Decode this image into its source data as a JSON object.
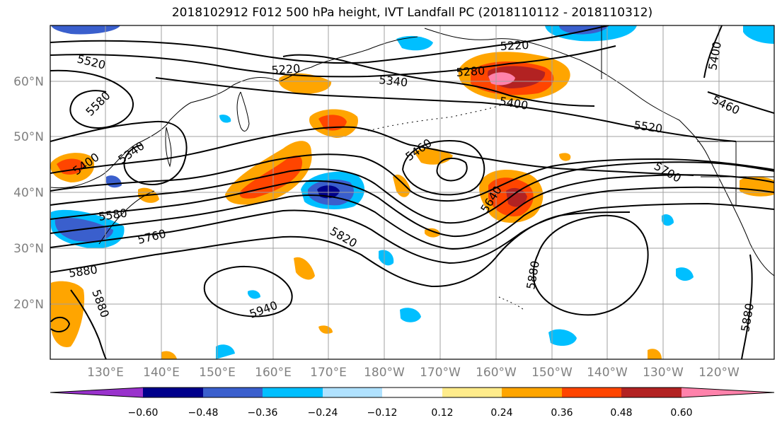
{
  "title": "2018102912 F012 500 hPa height, IVT Landfall PC (2018110112 - 2018110312)",
  "map": {
    "longitude_labels": [
      "130°E",
      "140°E",
      "150°E",
      "160°E",
      "170°E",
      "180°W",
      "170°W",
      "160°W",
      "150°W",
      "140°W",
      "130°W",
      "120°W"
    ],
    "latitude_labels": [
      "60°N",
      "50°N",
      "40°N",
      "30°N",
      "20°N"
    ],
    "contour_labels": [
      "5520",
      "5220",
      "5220",
      "5400",
      "5580",
      "5340",
      "5400",
      "5340",
      "5460",
      "5580",
      "5760",
      "5640",
      "5820",
      "5880",
      "5880",
      "5880",
      "5880",
      "5940",
      "5460",
      "5520",
      "5700",
      "5400",
      "5280"
    ]
  },
  "colorbar": {
    "tick_labels": [
      "−0.60",
      "−0.48",
      "−0.36",
      "−0.24",
      "−0.12",
      "0.12",
      "0.24",
      "0.36",
      "0.48",
      "0.60"
    ],
    "colors": [
      "#9932cc",
      "#00008b",
      "#3a5fcd",
      "#00bfff",
      "#b0e2ff",
      "#ffffff",
      "#ffec8b",
      "#ffa500",
      "#ff4500",
      "#b22222",
      "#ff82ab"
    ]
  }
}
